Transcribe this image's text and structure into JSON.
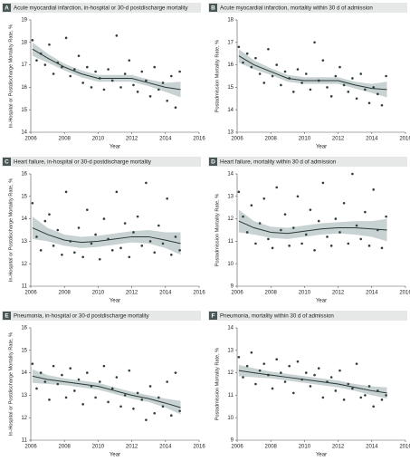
{
  "chart_data": [
    {
      "type": "scatter",
      "letter": "A",
      "title": "Acute myocardial infarction, in-hospital or 30-d postdischarge mortality",
      "x_label": "Year",
      "y_label": "In-Hospital or Postdischarge Mortality Rate, %",
      "xlim": [
        2006,
        2016
      ],
      "xticks": [
        2006,
        2008,
        2010,
        2012,
        2014,
        2016
      ],
      "ylim": [
        14,
        19
      ],
      "yticks": [
        14,
        15,
        16,
        17,
        18,
        19
      ],
      "points": {
        "x": [
          2006.1,
          2006.35,
          2006.6,
          2006.85,
          2007.1,
          2007.35,
          2007.6,
          2007.85,
          2008.1,
          2008.35,
          2008.6,
          2008.85,
          2009.1,
          2009.35,
          2009.6,
          2009.85,
          2010.1,
          2010.35,
          2010.6,
          2010.85,
          2011.1,
          2011.35,
          2011.6,
          2011.85,
          2012.1,
          2012.35,
          2012.6,
          2012.85,
          2013.1,
          2013.35,
          2013.6,
          2013.85,
          2014.1,
          2014.35,
          2014.6,
          2014.85
        ],
        "y": [
          18.1,
          17.2,
          17.5,
          17.0,
          17.9,
          16.6,
          17.1,
          16.9,
          18.2,
          16.5,
          16.8,
          17.4,
          16.2,
          16.9,
          16.0,
          16.7,
          16.4,
          15.9,
          16.8,
          16.3,
          18.3,
          16.0,
          16.6,
          17.2,
          16.1,
          15.8,
          16.7,
          16.3,
          15.6,
          16.9,
          15.9,
          16.2,
          15.4,
          16.5,
          15.1,
          16.7
        ]
      },
      "trend": {
        "x": [
          2006.1,
          2007,
          2008,
          2009,
          2010,
          2011,
          2012,
          2013,
          2014,
          2014.9
        ],
        "y": [
          17.7,
          17.3,
          16.9,
          16.6,
          16.4,
          16.4,
          16.4,
          16.2,
          16.0,
          15.9
        ],
        "lower": [
          17.4,
          17.1,
          16.75,
          16.45,
          16.25,
          16.25,
          16.25,
          16.05,
          15.8,
          15.55
        ],
        "upper": [
          18.0,
          17.5,
          17.05,
          16.75,
          16.55,
          16.55,
          16.55,
          16.35,
          16.2,
          16.25
        ]
      }
    },
    {
      "type": "scatter",
      "letter": "B",
      "title": "Acute myocardial infarction, mortality within 30 d of admission",
      "x_label": "Year",
      "y_label": "Postadmission Mortality Rate, %",
      "xlim": [
        2006,
        2016
      ],
      "xticks": [
        2006,
        2008,
        2010,
        2012,
        2014,
        2016
      ],
      "ylim": [
        13,
        18
      ],
      "yticks": [
        13,
        14,
        15,
        16,
        17,
        18
      ],
      "points": {
        "x": [
          2006.1,
          2006.35,
          2006.6,
          2006.85,
          2007.1,
          2007.35,
          2007.6,
          2007.85,
          2008.1,
          2008.35,
          2008.6,
          2008.85,
          2009.1,
          2009.35,
          2009.6,
          2009.85,
          2010.1,
          2010.35,
          2010.6,
          2010.85,
          2011.1,
          2011.35,
          2011.6,
          2011.85,
          2012.1,
          2012.35,
          2012.6,
          2012.85,
          2013.1,
          2013.35,
          2013.6,
          2013.85,
          2014.1,
          2014.35,
          2014.6,
          2014.85
        ],
        "y": [
          16.8,
          16.1,
          16.5,
          15.9,
          16.3,
          15.6,
          15.2,
          16.7,
          15.5,
          16.0,
          15.1,
          15.7,
          15.4,
          14.8,
          15.8,
          15.2,
          15.6,
          14.9,
          17.0,
          15.3,
          16.2,
          15.0,
          14.6,
          15.5,
          15.9,
          15.1,
          14.8,
          15.4,
          14.5,
          15.6,
          14.9,
          14.3,
          15.0,
          14.7,
          14.2,
          15.5
        ]
      },
      "trend": {
        "x": [
          2006.1,
          2007,
          2008,
          2009,
          2010,
          2011,
          2012,
          2013,
          2014,
          2014.9
        ],
        "y": [
          16.4,
          16.0,
          15.7,
          15.4,
          15.3,
          15.3,
          15.3,
          15.1,
          14.95,
          14.9
        ],
        "lower": [
          16.1,
          15.8,
          15.55,
          15.25,
          15.15,
          15.15,
          15.15,
          14.95,
          14.75,
          14.55
        ],
        "upper": [
          16.7,
          16.2,
          15.85,
          15.55,
          15.45,
          15.45,
          15.45,
          15.25,
          15.15,
          15.25
        ]
      }
    },
    {
      "type": "scatter",
      "letter": "C",
      "title": "Heart failure, in-hospital or 30-d postdischarge mortality",
      "x_label": "Year",
      "y_label": "In-Hospital or Postdischarge Mortality Rate, %",
      "xlim": [
        2006,
        2016
      ],
      "xticks": [
        2006,
        2008,
        2010,
        2012,
        2014,
        2016
      ],
      "ylim": [
        11,
        16
      ],
      "yticks": [
        11,
        12,
        13,
        14,
        15,
        16
      ],
      "points": {
        "x": [
          2006.1,
          2006.35,
          2006.6,
          2006.85,
          2007.1,
          2007.35,
          2007.6,
          2007.85,
          2008.1,
          2008.35,
          2008.6,
          2008.85,
          2009.1,
          2009.35,
          2009.6,
          2009.85,
          2010.1,
          2010.35,
          2010.6,
          2010.85,
          2011.1,
          2011.35,
          2011.6,
          2011.85,
          2012.1,
          2012.35,
          2012.6,
          2012.85,
          2013.1,
          2013.35,
          2013.6,
          2013.85,
          2014.1,
          2014.35,
          2014.6,
          2014.85
        ],
        "y": [
          14.7,
          13.2,
          12.6,
          13.9,
          14.2,
          12.8,
          13.5,
          12.4,
          15.2,
          13.0,
          12.5,
          13.6,
          12.3,
          14.4,
          12.9,
          13.3,
          12.2,
          14.0,
          13.1,
          12.6,
          15.2,
          12.7,
          13.8,
          12.3,
          13.4,
          14.1,
          12.8,
          15.6,
          13.0,
          12.5,
          13.7,
          12.9,
          14.9,
          12.4,
          13.2,
          12.6
        ]
      },
      "trend": {
        "x": [
          2006.1,
          2007,
          2008,
          2009,
          2010,
          2011,
          2012,
          2013,
          2014,
          2014.9
        ],
        "y": [
          13.6,
          13.3,
          13.05,
          12.95,
          13.0,
          13.1,
          13.2,
          13.2,
          13.05,
          12.9
        ],
        "lower": [
          13.1,
          13.0,
          12.8,
          12.7,
          12.75,
          12.85,
          12.95,
          12.9,
          12.7,
          12.4
        ],
        "upper": [
          14.1,
          13.6,
          13.3,
          13.2,
          13.25,
          13.35,
          13.45,
          13.5,
          13.4,
          13.4
        ]
      }
    },
    {
      "type": "scatter",
      "letter": "D",
      "title": "Heart failure, mortality within 30 d of admission",
      "x_label": "Year",
      "y_label": "Postadmission Mortality Rate, %",
      "xlim": [
        2006,
        2016
      ],
      "xticks": [
        2006,
        2008,
        2010,
        2012,
        2014,
        2016
      ],
      "ylim": [
        9,
        14
      ],
      "yticks": [
        9,
        10,
        11,
        12,
        13,
        14
      ],
      "points": {
        "x": [
          2006.1,
          2006.35,
          2006.6,
          2006.85,
          2007.1,
          2007.35,
          2007.6,
          2007.85,
          2008.1,
          2008.35,
          2008.6,
          2008.85,
          2009.1,
          2009.35,
          2009.6,
          2009.85,
          2010.1,
          2010.35,
          2010.6,
          2010.85,
          2011.1,
          2011.35,
          2011.6,
          2011.85,
          2012.1,
          2012.35,
          2012.6,
          2012.85,
          2013.1,
          2013.35,
          2013.6,
          2013.85,
          2014.1,
          2014.35,
          2014.6,
          2014.85
        ],
        "y": [
          13.2,
          12.1,
          11.4,
          12.6,
          10.9,
          11.8,
          12.9,
          11.1,
          10.7,
          13.4,
          11.5,
          12.2,
          10.8,
          11.6,
          13.0,
          10.9,
          11.3,
          12.4,
          10.6,
          11.9,
          13.6,
          11.2,
          10.8,
          12.0,
          11.4,
          12.7,
          10.9,
          14.0,
          11.7,
          11.1,
          12.3,
          10.8,
          13.3,
          11.5,
          10.7,
          12.1
        ]
      },
      "trend": {
        "x": [
          2006.1,
          2007,
          2008,
          2009,
          2010,
          2011,
          2012,
          2013,
          2014,
          2014.9
        ],
        "y": [
          11.9,
          11.6,
          11.4,
          11.35,
          11.45,
          11.55,
          11.6,
          11.6,
          11.55,
          11.5
        ],
        "lower": [
          11.4,
          11.3,
          11.15,
          11.1,
          11.2,
          11.3,
          11.35,
          11.3,
          11.2,
          11.0
        ],
        "upper": [
          12.4,
          11.9,
          11.65,
          11.6,
          11.7,
          11.8,
          11.85,
          11.9,
          11.9,
          12.0
        ]
      }
    },
    {
      "type": "scatter",
      "letter": "E",
      "title": "Pneumonia, in-hospital or 30-d postdischarge mortality",
      "x_label": "Year",
      "y_label": "In-Hospital or Postdischarge Mortality Rate, %",
      "xlim": [
        2006,
        2016
      ],
      "xticks": [
        2006,
        2008,
        2010,
        2012,
        2014,
        2016
      ],
      "ylim": [
        11,
        16
      ],
      "yticks": [
        11,
        12,
        13,
        14,
        15,
        16
      ],
      "points": {
        "x": [
          2006.1,
          2006.35,
          2006.6,
          2006.85,
          2007.1,
          2007.35,
          2007.6,
          2007.85,
          2008.1,
          2008.35,
          2008.6,
          2008.85,
          2009.1,
          2009.35,
          2009.6,
          2009.85,
          2010.1,
          2010.35,
          2010.6,
          2010.85,
          2011.1,
          2011.35,
          2011.6,
          2011.85,
          2012.1,
          2012.35,
          2012.6,
          2012.85,
          2013.1,
          2013.35,
          2013.6,
          2013.85,
          2014.1,
          2014.35,
          2014.6,
          2014.85
        ],
        "y": [
          14.4,
          13.3,
          14.0,
          13.6,
          12.8,
          14.3,
          13.5,
          13.9,
          12.9,
          14.2,
          13.2,
          13.7,
          12.6,
          14.0,
          13.4,
          12.9,
          13.6,
          14.3,
          12.7,
          13.3,
          13.8,
          12.5,
          13.0,
          14.1,
          12.4,
          13.1,
          12.8,
          11.9,
          13.4,
          12.2,
          12.9,
          12.5,
          13.6,
          12.1,
          14.0,
          12.3
        ]
      },
      "trend": {
        "x": [
          2006.1,
          2007,
          2008,
          2009,
          2010,
          2011,
          2012,
          2013,
          2014,
          2014.9
        ],
        "y": [
          13.85,
          13.7,
          13.6,
          13.5,
          13.4,
          13.2,
          13.0,
          12.85,
          12.65,
          12.45
        ],
        "lower": [
          13.55,
          13.5,
          13.45,
          13.35,
          13.25,
          13.05,
          12.85,
          12.7,
          12.45,
          12.15
        ],
        "upper": [
          14.15,
          13.9,
          13.75,
          13.65,
          13.55,
          13.35,
          13.15,
          13.0,
          12.85,
          12.75
        ]
      }
    },
    {
      "type": "scatter",
      "letter": "F",
      "title": "Pneumonia, mortality within 30 d of admission",
      "x_label": "Year",
      "y_label": "Postadmission Mortality Rate, %",
      "xlim": [
        2006,
        2016
      ],
      "xticks": [
        2006,
        2008,
        2010,
        2012,
        2014,
        2016
      ],
      "ylim": [
        9,
        14
      ],
      "yticks": [
        9,
        10,
        11,
        12,
        13,
        14
      ],
      "points": {
        "x": [
          2006.1,
          2006.35,
          2006.6,
          2006.85,
          2007.1,
          2007.35,
          2007.6,
          2007.85,
          2008.1,
          2008.35,
          2008.6,
          2008.85,
          2009.1,
          2009.35,
          2009.6,
          2009.85,
          2010.1,
          2010.35,
          2010.6,
          2010.85,
          2011.1,
          2011.35,
          2011.6,
          2011.85,
          2012.1,
          2012.35,
          2012.6,
          2012.85,
          2013.1,
          2013.35,
          2013.6,
          2013.85,
          2014.1,
          2014.35,
          2014.6,
          2014.85
        ],
        "y": [
          12.7,
          11.8,
          12.3,
          12.9,
          11.5,
          12.1,
          12.4,
          11.9,
          11.3,
          12.6,
          12.0,
          11.6,
          12.3,
          11.1,
          12.5,
          11.7,
          12.0,
          11.4,
          11.9,
          12.2,
          10.9,
          11.6,
          11.8,
          11.2,
          12.1,
          10.8,
          11.5,
          11.3,
          12.4,
          10.9,
          11.0,
          11.4,
          10.5,
          11.2,
          10.8,
          11.0
        ]
      },
      "trend": {
        "x": [
          2006.1,
          2007,
          2008,
          2009,
          2010,
          2011,
          2012,
          2013,
          2014,
          2014.9
        ],
        "y": [
          12.1,
          12.0,
          11.9,
          11.8,
          11.7,
          11.6,
          11.5,
          11.35,
          11.2,
          11.1
        ],
        "lower": [
          11.85,
          11.8,
          11.75,
          11.65,
          11.55,
          11.45,
          11.35,
          11.2,
          11.0,
          10.85
        ],
        "upper": [
          12.35,
          12.2,
          12.05,
          11.95,
          11.85,
          11.75,
          11.65,
          11.5,
          11.4,
          11.35
        ]
      }
    }
  ]
}
